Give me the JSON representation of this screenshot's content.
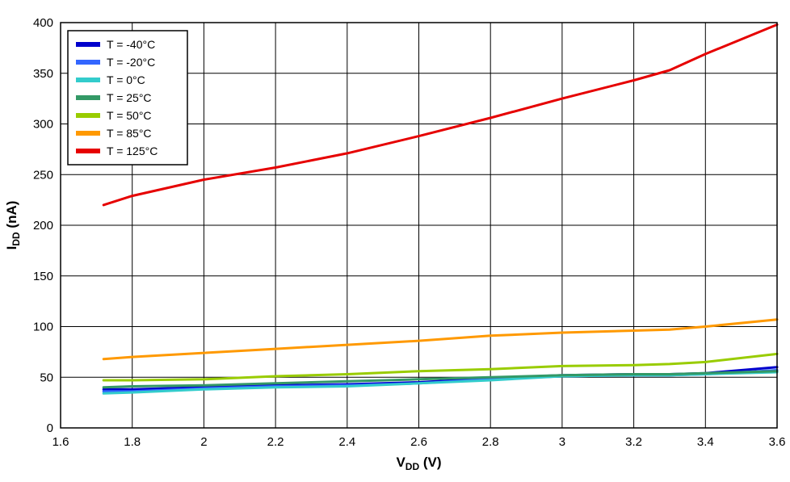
{
  "chart_data": {
    "type": "line",
    "title": "",
    "xlabel": {
      "main": "V",
      "sub": "DD",
      "suffix": " (V)"
    },
    "ylabel": {
      "main": "I",
      "sub": "DD",
      "suffix": " (nA)"
    },
    "xlim": [
      1.6,
      3.6
    ],
    "ylim": [
      0,
      400
    ],
    "grid": true,
    "legend_position": "top-left",
    "xticks": [
      1.6,
      1.8,
      2.0,
      2.2,
      2.4,
      2.6,
      2.8,
      3.0,
      3.2,
      3.4,
      3.6
    ],
    "xtick_labels": [
      "1.6",
      "1.8",
      "2",
      "2.2",
      "2.4",
      "2.6",
      "2.8",
      "3",
      "3.2",
      "3.4",
      "3.6"
    ],
    "yticks": [
      0,
      50,
      100,
      150,
      200,
      250,
      300,
      350,
      400
    ],
    "ytick_labels": [
      "0",
      "50",
      "100",
      "150",
      "200",
      "250",
      "300",
      "350",
      "400"
    ],
    "x": [
      1.72,
      1.8,
      2.0,
      2.2,
      2.4,
      2.6,
      2.8,
      3.0,
      3.2,
      3.3,
      3.4,
      3.6
    ],
    "series": [
      {
        "name": "T = -40°C",
        "color": "#0000CC",
        "values": [
          38,
          38,
          40,
          42,
          43,
          45,
          49,
          52,
          53,
          53,
          54,
          60
        ]
      },
      {
        "name": "T = -20°C",
        "color": "#3366FF",
        "values": [
          36,
          36,
          39,
          41,
          42,
          44,
          48,
          51,
          52,
          52,
          53,
          57
        ]
      },
      {
        "name": "T = 0°C",
        "color": "#33CCCC",
        "values": [
          34,
          35,
          38,
          40,
          41,
          44,
          47,
          51,
          52,
          52,
          53,
          55
        ]
      },
      {
        "name": "T = 25°C",
        "color": "#339966",
        "values": [
          40,
          41,
          42,
          44,
          46,
          48,
          50,
          52,
          53,
          53,
          54,
          56
        ]
      },
      {
        "name": "T = 50°C",
        "color": "#99CC00",
        "values": [
          47,
          47,
          48,
          51,
          53,
          56,
          58,
          61,
          62,
          63,
          65,
          73
        ]
      },
      {
        "name": "T = 85°C",
        "color": "#FF9900",
        "values": [
          68,
          70,
          74,
          78,
          82,
          86,
          91,
          94,
          96,
          97,
          100,
          107
        ]
      },
      {
        "name": "T = 125°C",
        "color": "#E60000",
        "values": [
          220,
          229,
          245,
          257,
          271,
          288,
          306,
          325,
          343,
          353,
          369,
          398
        ]
      }
    ]
  }
}
